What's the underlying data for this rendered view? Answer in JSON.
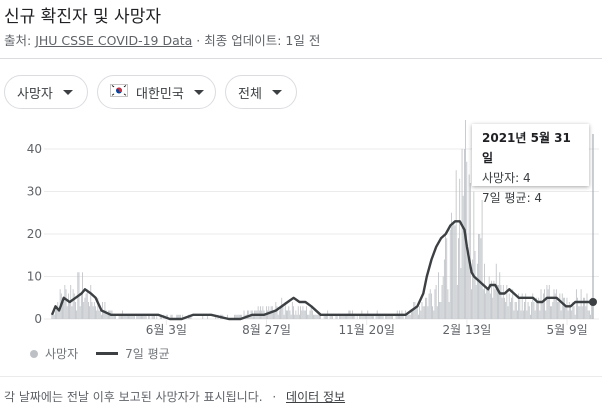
{
  "title": "신규 확진자 및 사망자",
  "source_prefix": "출처: ",
  "source_link": "JHU CSSE COVID-19 Data",
  "source_suffix": " · 최종 업데이트: 1일 전",
  "filters": [
    {
      "label": "사망자",
      "icon": "caret-down-icon"
    },
    {
      "label": "대한민국",
      "icon": "korea-flag-icon"
    },
    {
      "label": "전체",
      "icon": "caret-down-icon"
    }
  ],
  "tooltip": {
    "date": "2021년 5월 31일",
    "line1": "사망자: 4",
    "line2": "7일 평균: 4"
  },
  "legend": {
    "daily": "사망자",
    "avg": "7일 평균"
  },
  "footnote": "각 날짜에는 전날 이후 보고된 사망자가 표시됩니다.",
  "footnote_separator": "·",
  "footnote_link": "데이터 정보",
  "colors": {
    "bars": "#bdc1c6",
    "avg_line": "#3c4043",
    "grid": "#ebebeb",
    "text": "#5f6368"
  },
  "chart_data": {
    "type": "bar",
    "title": "",
    "xlabel": "",
    "ylabel": "",
    "ylim": [
      0,
      40
    ],
    "y_ticks": [
      0,
      10,
      20,
      30,
      40
    ],
    "x_tick_labels": [
      "6월 3일",
      "8월 27일",
      "11월 20일",
      "2월 13일",
      "5월 9일"
    ],
    "x_tick_days": [
      97,
      182,
      267,
      352,
      437
    ],
    "x_range_days": [
      0,
      459
    ],
    "grid": true,
    "legend_position": "bottom-left",
    "series": [
      {
        "name": "사망자",
        "type": "bar",
        "daily_approx_segments": [
          [
            0,
            1
          ],
          [
            10,
            6
          ],
          [
            25,
            7
          ],
          [
            40,
            3
          ],
          [
            55,
            1
          ],
          [
            97,
            0.5
          ],
          [
            150,
            0.5
          ],
          [
            182,
            2
          ],
          [
            200,
            3
          ],
          [
            230,
            1
          ],
          [
            267,
            1
          ],
          [
            300,
            1
          ],
          [
            320,
            5
          ],
          [
            340,
            15
          ],
          [
            350,
            38
          ],
          [
            356,
            22
          ],
          [
            362,
            20
          ],
          [
            368,
            15
          ],
          [
            375,
            10
          ],
          [
            382,
            6
          ],
          [
            395,
            4
          ],
          [
            415,
            5
          ],
          [
            437,
            4
          ],
          [
            459,
            4
          ]
        ]
      },
      {
        "name": "7일 평균",
        "type": "line",
        "points": [
          [
            0,
            1
          ],
          [
            3,
            3
          ],
          [
            6,
            2
          ],
          [
            10,
            5
          ],
          [
            15,
            4
          ],
          [
            20,
            5
          ],
          [
            25,
            6
          ],
          [
            28,
            7
          ],
          [
            33,
            6
          ],
          [
            37,
            5
          ],
          [
            42,
            2
          ],
          [
            50,
            1
          ],
          [
            60,
            1
          ],
          [
            75,
            1
          ],
          [
            90,
            1
          ],
          [
            100,
            0
          ],
          [
            110,
            0
          ],
          [
            120,
            1
          ],
          [
            135,
            1
          ],
          [
            150,
            0
          ],
          [
            160,
            0
          ],
          [
            170,
            1
          ],
          [
            180,
            1
          ],
          [
            190,
            2
          ],
          [
            200,
            4
          ],
          [
            205,
            5
          ],
          [
            210,
            4
          ],
          [
            215,
            4
          ],
          [
            220,
            3
          ],
          [
            228,
            1
          ],
          [
            240,
            1
          ],
          [
            255,
            1
          ],
          [
            270,
            1
          ],
          [
            285,
            1
          ],
          [
            300,
            1
          ],
          [
            305,
            2
          ],
          [
            310,
            3
          ],
          [
            315,
            6
          ],
          [
            318,
            10
          ],
          [
            322,
            14
          ],
          [
            326,
            17
          ],
          [
            330,
            19
          ],
          [
            334,
            20
          ],
          [
            338,
            22
          ],
          [
            342,
            23
          ],
          [
            346,
            23
          ],
          [
            350,
            21
          ],
          [
            352,
            17
          ],
          [
            354,
            14
          ],
          [
            356,
            11
          ],
          [
            358,
            10
          ],
          [
            362,
            9
          ],
          [
            366,
            8
          ],
          [
            370,
            7
          ],
          [
            372,
            8
          ],
          [
            376,
            8
          ],
          [
            380,
            6
          ],
          [
            384,
            6
          ],
          [
            388,
            7
          ],
          [
            392,
            6
          ],
          [
            396,
            5
          ],
          [
            400,
            5
          ],
          [
            404,
            5
          ],
          [
            408,
            5
          ],
          [
            412,
            4
          ],
          [
            416,
            4
          ],
          [
            420,
            5
          ],
          [
            424,
            5
          ],
          [
            428,
            5
          ],
          [
            432,
            4
          ],
          [
            436,
            3
          ],
          [
            440,
            3
          ],
          [
            444,
            4
          ],
          [
            448,
            4
          ],
          [
            452,
            4
          ],
          [
            456,
            4
          ],
          [
            459,
            4
          ]
        ]
      }
    ]
  }
}
